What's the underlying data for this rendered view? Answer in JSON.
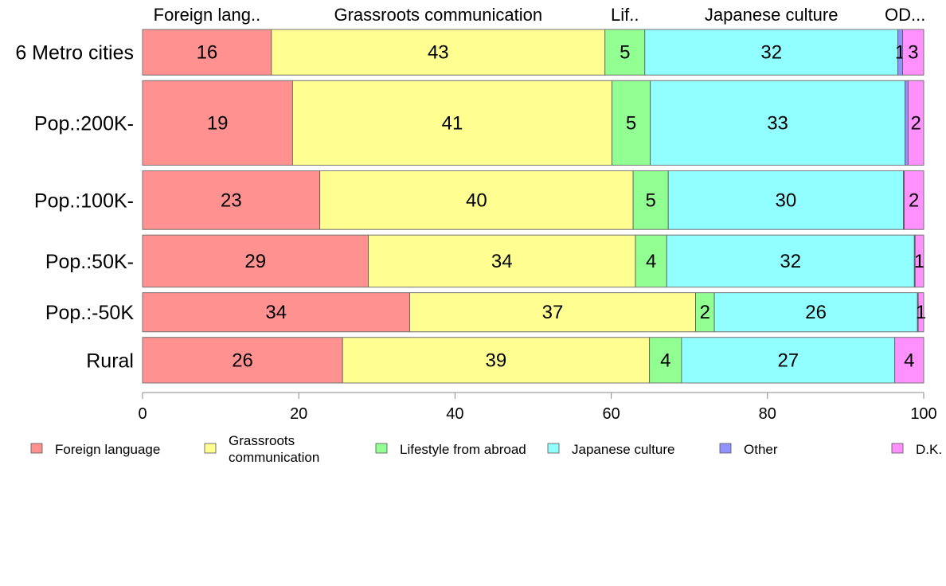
{
  "chart_data": {
    "type": "bar",
    "orientation": "horizontal",
    "stacked": true,
    "title": "",
    "xlabel": "",
    "ylabel": "",
    "xlim": [
      0,
      100
    ],
    "x_ticks": [
      0,
      20,
      40,
      60,
      80,
      100
    ],
    "grid": false,
    "legend_position": "bottom",
    "category_legend_top": [
      "Foreign lang..",
      "Grassroots communication",
      "Lif..",
      "Japanese culture",
      "OD..."
    ],
    "categories": [
      "6 Metro cities",
      "Pop.:200K-",
      "Pop.:100K-",
      "Pop.:50K-",
      "Pop.:-50K",
      "Rural"
    ],
    "series": [
      {
        "name": "Foreign language",
        "color": "#ff9191",
        "values": [
          16,
          19,
          23,
          29,
          34,
          26
        ],
        "raw": [
          16.5,
          19.2,
          22.7,
          28.9,
          34.2,
          25.6
        ]
      },
      {
        "name": "Grassroots\ncommunication",
        "color": "#ffff91",
        "values": [
          43,
          41,
          40,
          34,
          37,
          39
        ],
        "raw": [
          42.7,
          40.9,
          40.1,
          34.2,
          36.6,
          39.3
        ]
      },
      {
        "name": "Lifestyle from abroad",
        "color": "#91ff91",
        "values": [
          5,
          5,
          5,
          4,
          2,
          4
        ],
        "raw": [
          5.1,
          4.9,
          4.5,
          4.0,
          2.4,
          4.1
        ]
      },
      {
        "name": "Japanese culture",
        "color": "#91ffff",
        "values": [
          32,
          33,
          30,
          32,
          26,
          27
        ],
        "raw": [
          32.4,
          32.6,
          30.1,
          31.7,
          26.0,
          27.3
        ]
      },
      {
        "name": "Other",
        "color": "#9191ff",
        "values": [
          1,
          0,
          0,
          0,
          0,
          0
        ],
        "raw": [
          0.6,
          0.4,
          0.1,
          0.1,
          0.1,
          0.0
        ]
      },
      {
        "name": "D.K.",
        "color": "#ff91ff",
        "values": [
          3,
          2,
          2,
          1,
          1,
          4
        ],
        "raw": [
          2.7,
          2.0,
          2.5,
          1.1,
          0.7,
          3.7
        ]
      }
    ],
    "row_weights": [
      7,
      13,
      9,
      8,
      6,
      7
    ]
  }
}
